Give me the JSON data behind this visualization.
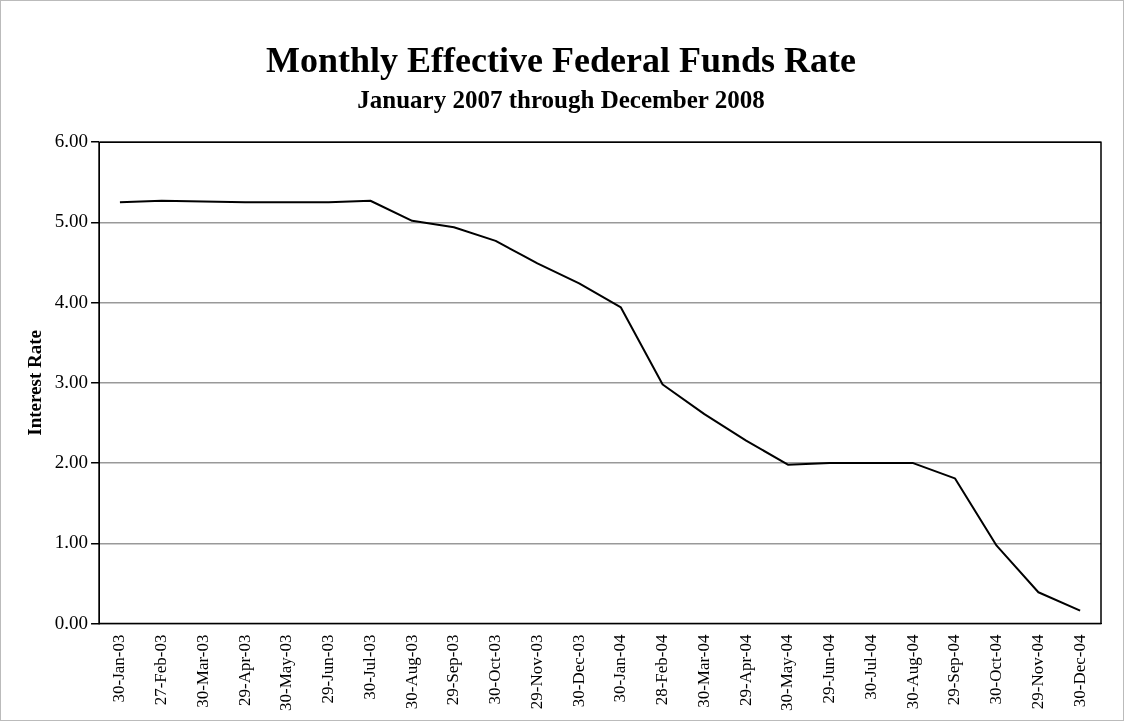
{
  "chart_data": {
    "type": "line",
    "title": "Monthly Effective Federal Funds Rate",
    "subtitle": "January 2007 through December 2008",
    "ylabel": "Interest Rate",
    "categories": [
      "30-Jan-03",
      "27-Feb-03",
      "30-Mar-03",
      "29-Apr-03",
      "30-May-03",
      "29-Jun-03",
      "30-Jul-03",
      "30-Aug-03",
      "29-Sep-03",
      "30-Oct-03",
      "29-Nov-03",
      "30-Dec-03",
      "30-Jan-04",
      "28-Feb-04",
      "30-Mar-04",
      "29-Apr-04",
      "30-May-04",
      "29-Jun-04",
      "30-Jul-04",
      "30-Aug-04",
      "29-Sep-04",
      "30-Oct-04",
      "29-Nov-04",
      "30-Dec-04"
    ],
    "series": [
      {
        "color": "#000000",
        "values": [
          5.25,
          5.27,
          5.26,
          5.25,
          5.25,
          5.25,
          5.27,
          5.02,
          4.94,
          4.77,
          4.49,
          4.24,
          3.94,
          2.98,
          2.61,
          2.28,
          1.98,
          2.0,
          2.0,
          2.0,
          1.81,
          0.97,
          0.39,
          0.16
        ]
      }
    ],
    "ylim": [
      0,
      6
    ],
    "yticks": [
      {
        "value": 0,
        "label": "0.00"
      },
      {
        "value": 1,
        "label": "1.00"
      },
      {
        "value": 2,
        "label": "2.00"
      },
      {
        "value": 3,
        "label": "3.00"
      },
      {
        "value": 4,
        "label": "4.00"
      },
      {
        "value": 5,
        "label": "5.00"
      },
      {
        "value": 6,
        "label": "6.00"
      }
    ],
    "grid": "y",
    "legend": false,
    "marker": "none",
    "line_style": "solid"
  }
}
